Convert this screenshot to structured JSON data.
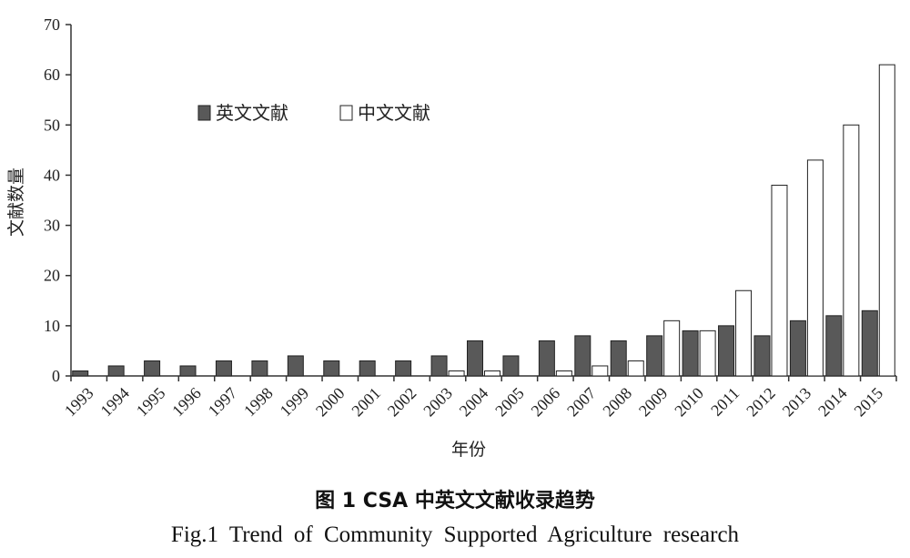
{
  "chart_data": {
    "type": "bar",
    "ylabel": "文献数量",
    "xlabel": "年份",
    "ylim": [
      0,
      70
    ],
    "yticks": [
      "0",
      "10",
      "20",
      "30",
      "40",
      "50",
      "60",
      "70"
    ],
    "categories": [
      "1993",
      "1994",
      "1995",
      "1996",
      "1997",
      "1998",
      "1999",
      "2000",
      "2001",
      "2002",
      "2003",
      "2004",
      "2005",
      "2006",
      "2007",
      "2008",
      "2009",
      "2010",
      "2011",
      "2012",
      "2013",
      "2014",
      "2015"
    ],
    "series": [
      {
        "name": "英文文献",
        "color": "#595959",
        "values": [
          1,
          2,
          3,
          2,
          3,
          3,
          4,
          3,
          3,
          3,
          4,
          7,
          4,
          7,
          8,
          7,
          8,
          9,
          10,
          8,
          11,
          12,
          13
        ]
      },
      {
        "name": "中文文献",
        "color": "#ffffff",
        "values": [
          0,
          0,
          0,
          0,
          0,
          0,
          0,
          0,
          0,
          0,
          1,
          1,
          0,
          1,
          2,
          3,
          11,
          9,
          17,
          38,
          43,
          50,
          62
        ]
      }
    ],
    "legend_position": "top-left",
    "grid": false
  },
  "caption": {
    "cn": "图 1 CSA 中英文文献收录趋势",
    "en": "Fig.1 Trend of Community Supported Agriculture research"
  }
}
